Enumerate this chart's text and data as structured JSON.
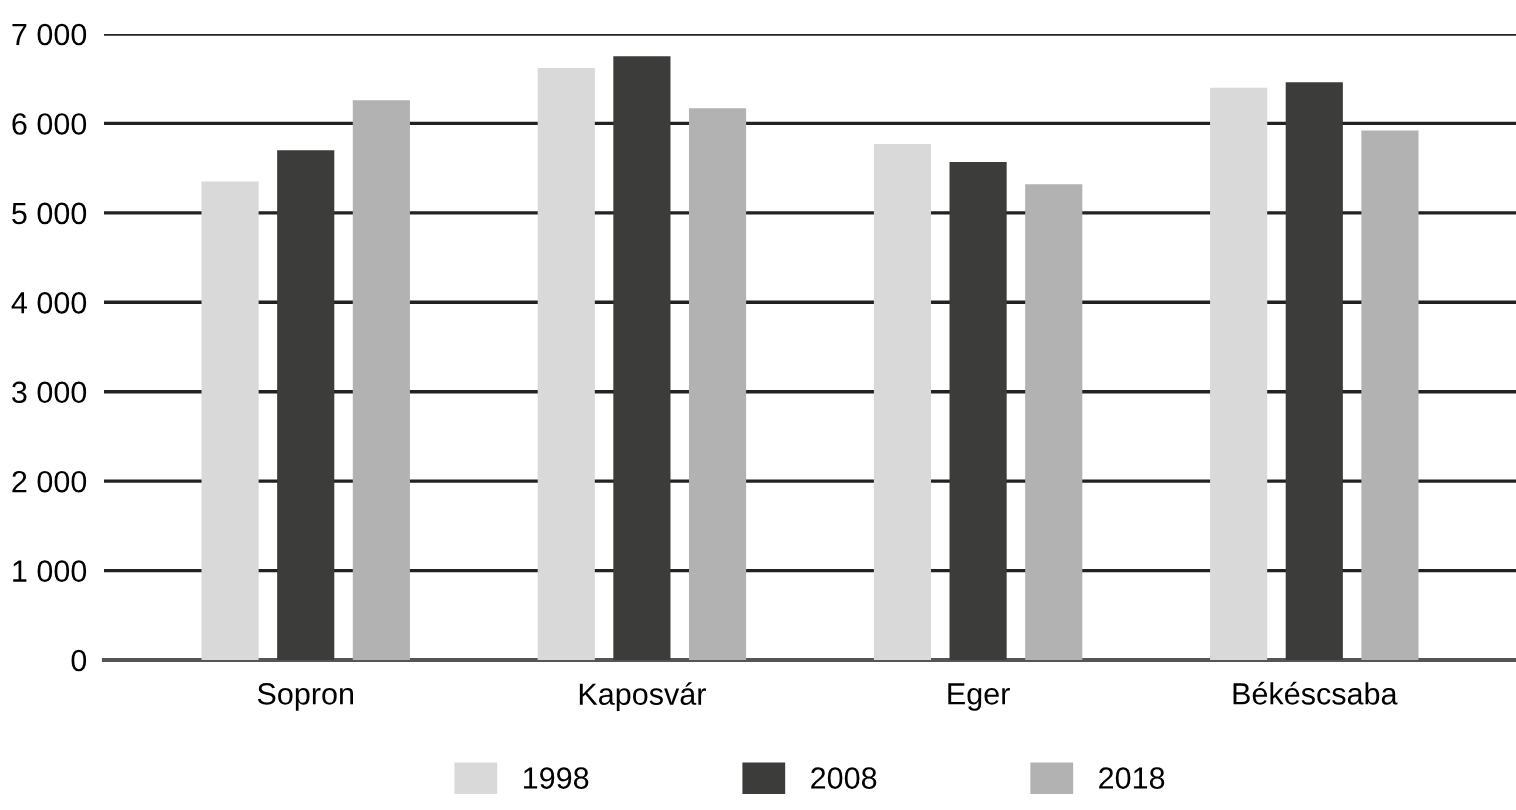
{
  "chart_data": {
    "type": "bar",
    "categories": [
      "Sopron",
      "Kaposvár",
      "Eger",
      "Békéscsaba"
    ],
    "series": [
      {
        "name": "1998",
        "color": "#d9d9d9",
        "values": [
          5350,
          6620,
          5770,
          6400
        ]
      },
      {
        "name": "2008",
        "color": "#3c3c3a",
        "values": [
          5700,
          6750,
          5570,
          6460
        ]
      },
      {
        "name": "2018",
        "color": "#b2b2b2",
        "values": [
          6260,
          6170,
          5320,
          5920
        ]
      }
    ],
    "ylim": [
      0,
      7000
    ],
    "yticks": [
      0,
      {
        "value": 1000,
        "label": "1 000"
      },
      {
        "value": 2000,
        "label": "2 000"
      },
      {
        "value": 3000,
        "label": "3 000"
      },
      {
        "value": 4000,
        "label": "4 000"
      },
      {
        "value": 5000,
        "label": "5 000"
      },
      {
        "value": 6000,
        "label": "6 000"
      },
      {
        "value": 7000,
        "label": "7 000"
      }
    ],
    "grid": "y",
    "legend": "bottom"
  }
}
